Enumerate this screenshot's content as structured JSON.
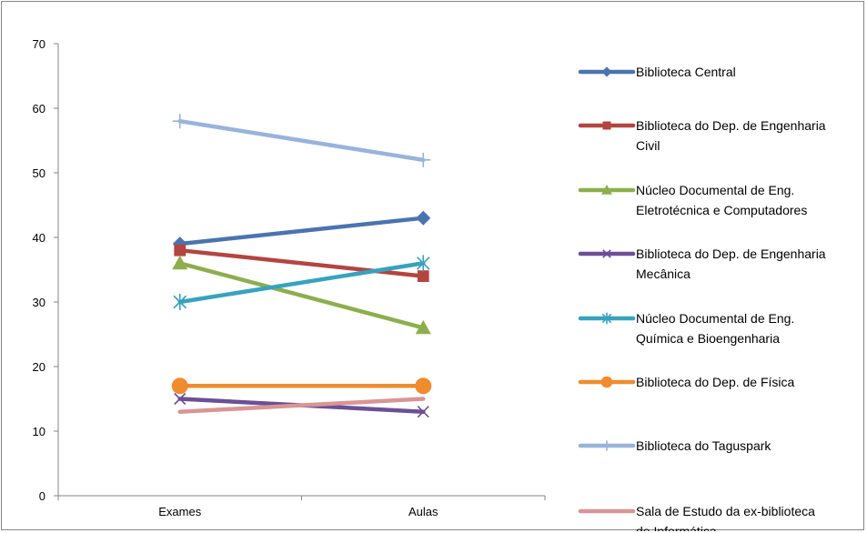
{
  "chart_data": {
    "type": "line",
    "title": "",
    "xlabel": "",
    "ylabel": "",
    "categories": [
      "Exames",
      "Aulas"
    ],
    "ylim": [
      0,
      70
    ],
    "yticks": [
      0,
      10,
      20,
      30,
      40,
      50,
      60,
      70
    ],
    "grid": false,
    "legend_position": "right",
    "series": [
      {
        "name": "Biblioteca Central",
        "legend_lines": [
          "Biblioteca Central"
        ],
        "values": [
          39,
          43
        ],
        "color": "#4a74b0",
        "marker": "diamond"
      },
      {
        "name": "Biblioteca do Dep. de Engenharia Civil",
        "legend_lines": [
          "Biblioteca do Dep. de Engenharia",
          "Civil"
        ],
        "values": [
          38,
          34
        ],
        "color": "#b5443f",
        "marker": "square"
      },
      {
        "name": "Núcleo Documental de Eng. Eletrotécnica e Computadores",
        "legend_lines": [
          "Núcleo Documental de Eng.",
          "Eletrotécnica e Computadores"
        ],
        "values": [
          36,
          26
        ],
        "color": "#8caf4c",
        "marker": "triangle"
      },
      {
        "name": "Biblioteca do Dep. de Engenharia Mecânica",
        "legend_lines": [
          "Biblioteca do Dep. de Engenharia",
          "Mecânica"
        ],
        "values": [
          15,
          13
        ],
        "color": "#6c4f97",
        "marker": "x"
      },
      {
        "name": "Núcleo Documental de Eng. Química e Bioengenharia",
        "legend_lines": [
          "Núcleo Documental de Eng.",
          "Química e Bioengenharia"
        ],
        "values": [
          30,
          36
        ],
        "color": "#36a3bf",
        "marker": "star"
      },
      {
        "name": "Biblioteca do Dep. de Física",
        "legend_lines": [
          "Biblioteca do Dep. de Física"
        ],
        "values": [
          17,
          17
        ],
        "color": "#f08c2e",
        "marker": "circle"
      },
      {
        "name": "Biblioteca do Taguspark",
        "legend_lines": [
          "Biblioteca do Taguspark"
        ],
        "values": [
          58,
          52
        ],
        "color": "#98b3dc",
        "marker": "plus"
      },
      {
        "name": "Sala de Estudo da ex-biblioteca de Informática",
        "legend_lines": [
          "Sala de Estudo da ex-biblioteca",
          "de Informática"
        ],
        "values": [
          13,
          15
        ],
        "color": "#d99594",
        "marker": "none"
      }
    ]
  }
}
